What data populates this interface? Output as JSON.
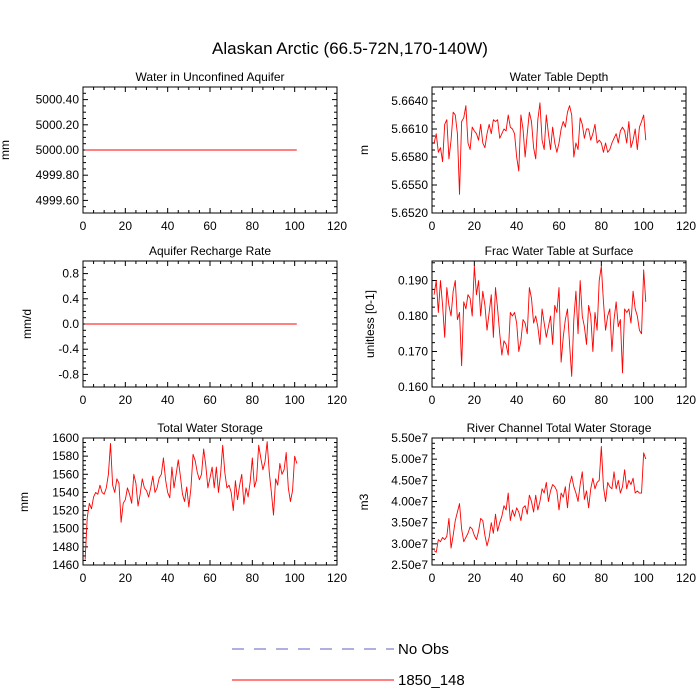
{
  "title": "Alaskan Arctic (66.5-72N,170-140W)",
  "legend": [
    {
      "label": "No Obs",
      "color": "#6060c0",
      "dash": true
    },
    {
      "label": "1850_148",
      "color": "#ff0000",
      "dash": false
    }
  ],
  "chart_data": [
    {
      "type": "line",
      "title": "Water in Unconfined Aquifer",
      "ylabel": "mm",
      "xlabel": "",
      "xlim": [
        0,
        120
      ],
      "xticks": [
        0,
        20,
        40,
        60,
        80,
        100,
        120
      ],
      "ylim": [
        4999.5,
        5000.5
      ],
      "yticks": [
        4999.6,
        4999.8,
        5000.0,
        5000.2,
        5000.4
      ],
      "ytick_labels": [
        "4999.60",
        "4999.80",
        "5000.00",
        "5000.20",
        "5000.40"
      ],
      "series": [
        {
          "name": "1850_148",
          "x_start": 1,
          "values": [
            5000,
            5000,
            5000,
            5000,
            5000,
            5000,
            5000,
            5000,
            5000,
            5000,
            5000,
            5000,
            5000,
            5000,
            5000,
            5000,
            5000,
            5000,
            5000,
            5000,
            5000,
            5000,
            5000,
            5000,
            5000,
            5000,
            5000,
            5000,
            5000,
            5000,
            5000,
            5000,
            5000,
            5000,
            5000,
            5000,
            5000,
            5000,
            5000,
            5000,
            5000,
            5000,
            5000,
            5000,
            5000,
            5000,
            5000,
            5000,
            5000,
            5000,
            5000,
            5000,
            5000,
            5000,
            5000,
            5000,
            5000,
            5000,
            5000,
            5000,
            5000,
            5000,
            5000,
            5000,
            5000,
            5000,
            5000,
            5000,
            5000,
            5000,
            5000,
            5000,
            5000,
            5000,
            5000,
            5000,
            5000,
            5000,
            5000,
            5000,
            5000,
            5000,
            5000,
            5000,
            5000,
            5000,
            5000,
            5000,
            5000,
            5000,
            5000,
            5000,
            5000,
            5000,
            5000,
            5000,
            5000,
            5000,
            5000,
            5000,
            5000
          ]
        }
      ]
    },
    {
      "type": "line",
      "title": "Water Table Depth",
      "ylabel": "m",
      "xlabel": "",
      "xlim": [
        0,
        120
      ],
      "xticks": [
        0,
        20,
        40,
        60,
        80,
        100,
        120
      ],
      "ylim": [
        5.652,
        5.6655
      ],
      "yticks": [
        5.652,
        5.655,
        5.658,
        5.661,
        5.664
      ],
      "ytick_labels": [
        "5.6520",
        "5.6550",
        "5.6580",
        "5.6610",
        "5.6640"
      ],
      "series": [
        {
          "name": "1850_148",
          "x_start": 1,
          "values": [
            5.6595,
            5.6605,
            5.6585,
            5.659,
            5.6575,
            5.6615,
            5.662,
            5.6578,
            5.6598,
            5.6628,
            5.6625,
            5.6605,
            5.654,
            5.6618,
            5.6622,
            5.6635,
            5.6595,
            5.6588,
            5.6612,
            5.6608,
            5.6605,
            5.6598,
            5.6615,
            5.6595,
            5.659,
            5.6605,
            5.6615,
            5.6605,
            5.662,
            5.6618,
            5.662,
            5.66,
            5.6605,
            5.661,
            5.6608,
            5.6625,
            5.6612,
            5.661,
            5.6605,
            5.658,
            5.6565,
            5.6625,
            5.661,
            5.658,
            5.6605,
            5.6628,
            5.6618,
            5.659,
            5.6578,
            5.662,
            5.6638,
            5.6598,
            5.6588,
            5.6625,
            5.6605,
            5.6588,
            5.6612,
            5.6595,
            5.6585,
            5.6595,
            5.661,
            5.6618,
            5.6612,
            5.6628,
            5.6635,
            5.6625,
            5.658,
            5.6595,
            5.6588,
            5.6622,
            5.6615,
            5.66,
            5.661,
            5.661,
            5.6598,
            5.6605,
            5.6615,
            5.6595,
            5.6598,
            5.6595,
            5.6585,
            5.6595,
            5.6585,
            5.6588,
            5.6595,
            5.66,
            5.6605,
            5.6595,
            5.6608,
            5.6612,
            5.6608,
            5.6595,
            5.6618,
            5.659,
            5.6598,
            5.661,
            5.6588,
            5.6612,
            5.6618,
            5.6625,
            5.6598
          ]
        }
      ]
    },
    {
      "type": "line",
      "title": "Aquifer Recharge Rate",
      "ylabel": "mm/d",
      "xlabel": "",
      "xlim": [
        0,
        120
      ],
      "xticks": [
        0,
        20,
        40,
        60,
        80,
        100,
        120
      ],
      "ylim": [
        -1.0,
        1.0
      ],
      "yticks": [
        -0.8,
        -0.4,
        0.0,
        0.4,
        0.8
      ],
      "ytick_labels": [
        "-0.8",
        "-0.4",
        "0.0",
        "0.4",
        "0.8"
      ],
      "series": [
        {
          "name": "1850_148",
          "x_start": 1,
          "values": [
            0,
            0,
            0,
            0,
            0,
            0,
            0,
            0,
            0,
            0,
            0,
            0,
            0,
            0,
            0,
            0,
            0,
            0,
            0,
            0,
            0,
            0,
            0,
            0,
            0,
            0,
            0,
            0,
            0,
            0,
            0,
            0,
            0,
            0,
            0,
            0,
            0,
            0,
            0,
            0,
            0,
            0,
            0,
            0,
            0,
            0,
            0,
            0,
            0,
            0,
            0,
            0,
            0,
            0,
            0,
            0,
            0,
            0,
            0,
            0,
            0,
            0,
            0,
            0,
            0,
            0,
            0,
            0,
            0,
            0,
            0,
            0,
            0,
            0,
            0,
            0,
            0,
            0,
            0,
            0,
            0,
            0,
            0,
            0,
            0,
            0,
            0,
            0,
            0,
            0,
            0,
            0,
            0,
            0,
            0,
            0,
            0,
            0,
            0,
            0,
            0
          ]
        }
      ]
    },
    {
      "type": "line",
      "title": "Frac Water Table at Surface",
      "ylabel": "unitless [0-1]",
      "xlabel": "",
      "xlim": [
        0,
        120
      ],
      "xticks": [
        0,
        20,
        40,
        60,
        80,
        100,
        120
      ],
      "ylim": [
        0.16,
        0.1955
      ],
      "yticks": [
        0.16,
        0.17,
        0.18,
        0.19
      ],
      "ytick_labels": [
        "0.160",
        "0.170",
        "0.180",
        "0.190"
      ],
      "series": [
        {
          "name": "1850_148",
          "x_start": 1,
          "values": [
            0.186,
            0.19,
            0.181,
            0.19,
            0.183,
            0.174,
            0.188,
            0.183,
            0.18,
            0.187,
            0.19,
            0.179,
            0.181,
            0.166,
            0.184,
            0.182,
            0.186,
            0.185,
            0.18,
            0.194,
            0.186,
            0.19,
            0.18,
            0.187,
            0.183,
            0.176,
            0.181,
            0.186,
            0.174,
            0.188,
            0.182,
            0.175,
            0.169,
            0.173,
            0.172,
            0.169,
            0.181,
            0.18,
            0.181,
            0.178,
            0.17,
            0.173,
            0.179,
            0.178,
            0.175,
            0.188,
            0.185,
            0.178,
            0.18,
            0.177,
            0.172,
            0.182,
            0.178,
            0.174,
            0.177,
            0.18,
            0.172,
            0.183,
            0.181,
            0.188,
            0.167,
            0.174,
            0.179,
            0.182,
            0.172,
            0.163,
            0.179,
            0.187,
            0.175,
            0.19,
            0.18,
            0.177,
            0.172,
            0.183,
            0.18,
            0.17,
            0.181,
            0.176,
            0.19,
            0.194,
            0.184,
            0.176,
            0.18,
            0.182,
            0.17,
            0.179,
            0.184,
            0.177,
            0.179,
            0.164,
            0.182,
            0.181,
            0.182,
            0.178,
            0.187,
            0.182,
            0.18,
            0.176,
            0.175,
            0.193,
            0.184
          ]
        }
      ]
    },
    {
      "type": "line",
      "title": "Total Water Storage",
      "ylabel": "mm",
      "xlabel": "",
      "xlim": [
        0,
        120
      ],
      "xticks": [
        0,
        20,
        40,
        60,
        80,
        100,
        120
      ],
      "ylim": [
        1460,
        1600
      ],
      "yticks": [
        1460,
        1480,
        1500,
        1520,
        1540,
        1560,
        1580,
        1600
      ],
      "ytick_labels": [
        "1460",
        "1480",
        "1500",
        "1520",
        "1540",
        "1560",
        "1580",
        "1600"
      ],
      "series": [
        {
          "name": "1850_148",
          "x_start": 1,
          "values": [
            1466,
            1512,
            1528,
            1522,
            1535,
            1540,
            1538,
            1548,
            1540,
            1538,
            1545,
            1560,
            1594,
            1548,
            1540,
            1555,
            1550,
            1507,
            1528,
            1532,
            1545,
            1538,
            1528,
            1560,
            1550,
            1525,
            1538,
            1555,
            1545,
            1542,
            1535,
            1545,
            1558,
            1540,
            1545,
            1556,
            1560,
            1578,
            1554,
            1540,
            1534,
            1568,
            1545,
            1560,
            1576,
            1558,
            1538,
            1530,
            1546,
            1524,
            1545,
            1582,
            1575,
            1562,
            1554,
            1560,
            1588,
            1570,
            1545,
            1556,
            1568,
            1545,
            1568,
            1540,
            1560,
            1592,
            1562,
            1545,
            1548,
            1540,
            1520,
            1553,
            1532,
            1548,
            1560,
            1527,
            1545,
            1535,
            1552,
            1578,
            1546,
            1554,
            1592,
            1578,
            1565,
            1574,
            1596,
            1562,
            1540,
            1515,
            1555,
            1548,
            1572,
            1560,
            1565,
            1584,
            1545,
            1530,
            1542,
            1580,
            1572
          ]
        }
      ]
    },
    {
      "type": "line",
      "title": "River Channel Total Water Storage",
      "ylabel": "m3",
      "xlabel": "",
      "xlim": [
        0,
        120
      ],
      "xticks": [
        0,
        20,
        40,
        60,
        80,
        100,
        120
      ],
      "ylim": [
        25000000,
        55000000
      ],
      "yticks": [
        25000000,
        30000000,
        35000000,
        40000000,
        45000000,
        50000000,
        55000000
      ],
      "ytick_labels": [
        "2.50e7",
        "3.00e7",
        "3.50e7",
        "4.00e7",
        "4.50e7",
        "5.00e7",
        "5.50e7"
      ],
      "series": [
        {
          "name": "1850_148",
          "x_start": 1,
          "values": [
            28400000,
            28000000,
            31000000,
            30500000,
            31500000,
            31000000,
            31800000,
            36000000,
            29000000,
            32000000,
            35500000,
            37500000,
            39500000,
            33500000,
            30500000,
            31500000,
            32500000,
            34000000,
            33500000,
            32000000,
            31000000,
            33000000,
            36000000,
            35500000,
            32000000,
            29500000,
            31500000,
            35000000,
            32500000,
            37000000,
            33000000,
            35000000,
            36500000,
            39000000,
            38000000,
            42000000,
            35500000,
            38000000,
            36500000,
            38500000,
            37500000,
            35500000,
            38500000,
            39000000,
            37000000,
            41500000,
            40000000,
            37500000,
            41500000,
            38000000,
            40000000,
            43000000,
            42000000,
            44500000,
            40000000,
            42500000,
            44000000,
            43500000,
            42500000,
            38000000,
            42000000,
            41000000,
            43500000,
            38500000,
            44000000,
            46000000,
            43500000,
            42000000,
            40000000,
            44000000,
            47000000,
            40500000,
            42500000,
            38500000,
            43000000,
            45500000,
            43000000,
            44500000,
            45000000,
            53000000,
            43500000,
            40000000,
            44500000,
            43500000,
            43000000,
            47000000,
            43000000,
            45000000,
            42000000,
            43500000,
            47500000,
            43000000,
            45000000,
            44000000,
            45500000,
            42000000,
            42500000,
            42000000,
            42000000,
            51500000,
            50000000
          ]
        }
      ]
    }
  ]
}
